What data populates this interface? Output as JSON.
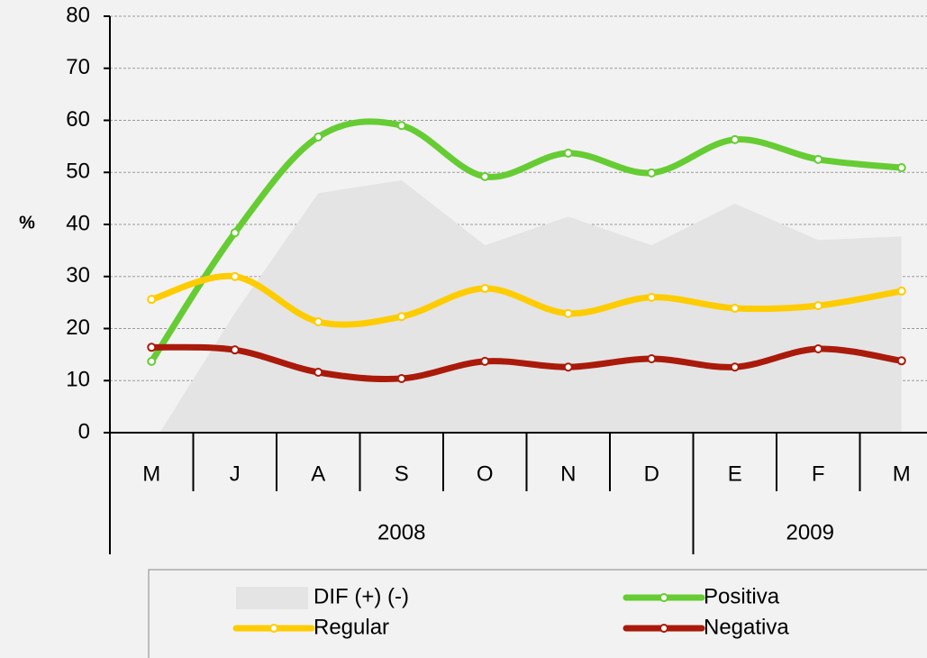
{
  "chart_data": {
    "type": "line",
    "y_label": "%",
    "categories": [
      "M",
      "J",
      "A",
      "S",
      "O",
      "N",
      "D",
      "E",
      "F",
      "M"
    ],
    "groups": [
      {
        "label": "2008",
        "count": 7
      },
      {
        "label": "2009",
        "count": 3
      }
    ],
    "series": [
      {
        "name": "DIF (+) (-)",
        "kind": "area",
        "color": "#e4e4e4",
        "values": [
          -2.5,
          23,
          46,
          48.5,
          36,
          41.5,
          36,
          44,
          37,
          37.7
        ]
      },
      {
        "name": "Positiva",
        "kind": "line",
        "color": "#66cc33",
        "values": [
          13.7,
          38.4,
          56.8,
          59,
          49.2,
          53.7,
          49.9,
          56.3,
          52.5,
          50.9
        ]
      },
      {
        "name": "Regular",
        "kind": "line",
        "color": "#ffcc00",
        "values": [
          25.6,
          30,
          21.3,
          22.3,
          27.7,
          22.9,
          26,
          23.9,
          24.4,
          27.2
        ]
      },
      {
        "name": "Negativa",
        "kind": "line",
        "color": "#aa1a0a",
        "values": [
          16.4,
          15.9,
          11.6,
          10.4,
          13.7,
          12.6,
          14.2,
          12.6,
          16.1,
          13.8
        ]
      }
    ],
    "ylim": [
      0,
      80
    ],
    "yticks": [
      0,
      10,
      20,
      30,
      40,
      50,
      60,
      70,
      80
    ],
    "grid": true
  }
}
